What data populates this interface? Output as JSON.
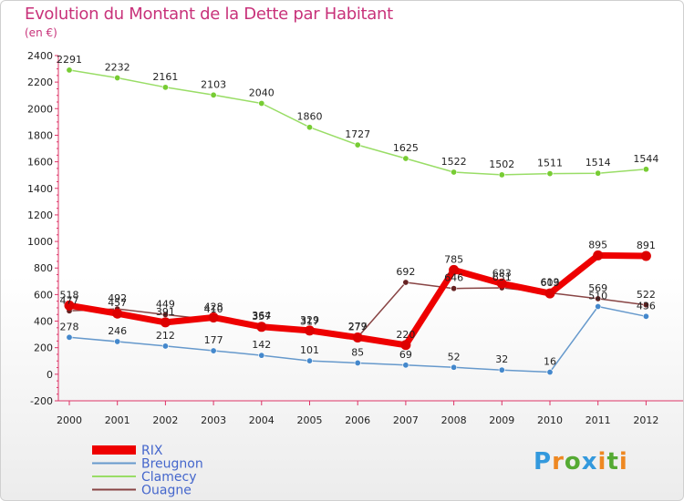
{
  "chart_data": {
    "type": "line",
    "title": "Evolution du Montant de la Dette par Habitant",
    "subtitle": "(en €)",
    "x": [
      "2000",
      "2001",
      "2002",
      "2003",
      "2004",
      "2005",
      "2006",
      "2007",
      "2008",
      "2009",
      "2010",
      "2011",
      "2012"
    ],
    "ylim": [
      -200,
      2400
    ],
    "yticks": [
      -200,
      0,
      200,
      400,
      600,
      800,
      1000,
      1200,
      1400,
      1600,
      1800,
      2000,
      2200,
      2400
    ],
    "grid": false,
    "legend_position": "bottom-left",
    "series": [
      {
        "name": "Clamecy",
        "color": "#99dd66",
        "marker": "#77cc33",
        "width": 1.5,
        "values": [
          2291,
          2232,
          2161,
          2103,
          2040,
          1860,
          1727,
          1625,
          1522,
          1502,
          1511,
          1514,
          1544
        ],
        "labels": [
          "2291",
          "2232",
          "2161",
          "2103",
          "2040",
          "1860",
          "1727",
          "1625",
          "1522",
          "1502",
          "1511",
          "1514",
          "1544"
        ]
      },
      {
        "name": "Breugnon",
        "color": "#6699cc",
        "marker": "#4488cc",
        "width": 1.5,
        "values": [
          278,
          246,
          212,
          177,
          142,
          101,
          85,
          69,
          52,
          32,
          16,
          510,
          436
        ],
        "labels": [
          "278",
          "246",
          "212",
          "177",
          "142",
          "101",
          "85",
          "69",
          "52",
          "32",
          "16",
          "510",
          "436"
        ]
      },
      {
        "name": "Ouagne",
        "color": "#884444",
        "marker": "#662222",
        "width": 1.5,
        "values": [
          477,
          492,
          449,
          410,
          364,
          317,
          279,
          692,
          646,
          651,
          613,
          569,
          522
        ],
        "labels": [
          "477",
          "492",
          "449",
          "410",
          "364",
          "317",
          "279",
          "692",
          "646",
          "651",
          "613",
          "569",
          "522"
        ]
      },
      {
        "name": "RIX",
        "color": "#ee0000",
        "marker": "#dd0000",
        "width": 7,
        "values": [
          518,
          457,
          391,
          428,
          357,
          329,
          277,
          220,
          785,
          683,
          609,
          895,
          891
        ],
        "labels": [
          "518",
          "457",
          "391",
          "428",
          "357",
          "329",
          "277",
          "220",
          "785",
          "683",
          "609",
          "895",
          "891"
        ]
      }
    ],
    "legend_order": [
      "RIX",
      "Breugnon",
      "Clamecy",
      "Ouagne"
    ]
  },
  "brand": {
    "letters": [
      "P",
      "r",
      "o",
      "x",
      "i",
      "t",
      "i"
    ],
    "colors": [
      "#3399dd",
      "#ee8822",
      "#55aa33",
      "#3399dd",
      "#ee8822",
      "#55aa33",
      "#ee8822"
    ]
  },
  "colors": {
    "title": "#c8327a",
    "axis": "#dd3366"
  }
}
